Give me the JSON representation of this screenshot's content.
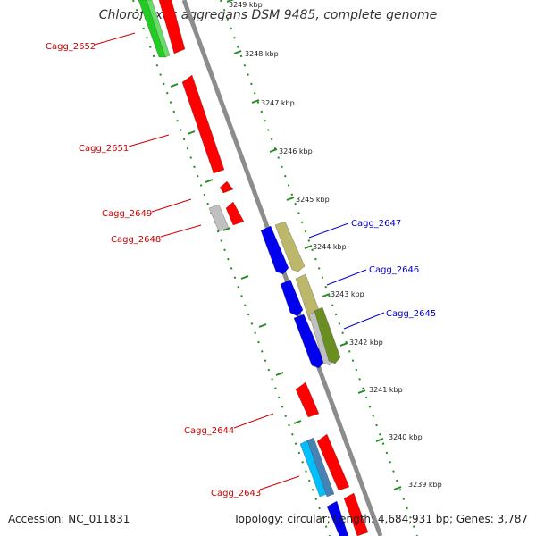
{
  "title": "Chloroflexus aggregans DSM 9485, complete genome",
  "accession_text": "Accession: NC_011831",
  "summary_text": "Topology: circular; Length: 4,684,931 bp; Genes: 3,787",
  "colors": {
    "backbone": "#8c8c8c",
    "scale_dots": "#228b22",
    "label_left": "#cc0000",
    "label_right": "#0000cc",
    "red_gene": "#ff0000",
    "green_gene": "#22cc22",
    "blue_gene": "#0000ee",
    "khaki_gene": "#bdb76b",
    "olive_gene": "#6b8e23",
    "gray_gene": "#c0c0c0",
    "cyan_gene": "#00bfff"
  },
  "scale_ticks": [
    {
      "label": "3249 kbp",
      "kbp": 3249
    },
    {
      "label": "3248 kbp",
      "kbp": 3248
    },
    {
      "label": "3247 kbp",
      "kbp": 3247
    },
    {
      "label": "3246 kbp",
      "kbp": 3246
    },
    {
      "label": "3245 kbp",
      "kbp": 3245
    },
    {
      "label": "3244 kbp",
      "kbp": 3244
    },
    {
      "label": "3243 kbp",
      "kbp": 3243
    },
    {
      "label": "3242 kbp",
      "kbp": 3242
    },
    {
      "label": "3241 kbp",
      "kbp": 3241
    },
    {
      "label": "3240 kbp",
      "kbp": 3240
    },
    {
      "label": "3239 kbp",
      "kbp": 3239
    }
  ],
  "gene_labels": [
    {
      "name": "Cagg_2652",
      "side": "left"
    },
    {
      "name": "Cagg_2651",
      "side": "left"
    },
    {
      "name": "Cagg_2649",
      "side": "left"
    },
    {
      "name": "Cagg_2648",
      "side": "left"
    },
    {
      "name": "Cagg_2647",
      "side": "right"
    },
    {
      "name": "Cagg_2646",
      "side": "right"
    },
    {
      "name": "Cagg_2645",
      "side": "right"
    },
    {
      "name": "Cagg_2644",
      "side": "left"
    },
    {
      "name": "Cagg_2643",
      "side": "left"
    }
  ]
}
